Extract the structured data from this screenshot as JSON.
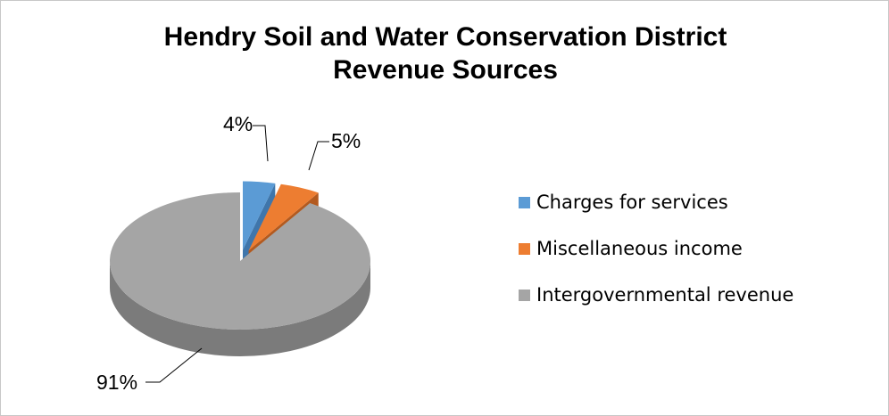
{
  "chart_data": {
    "type": "pie",
    "title_lines": [
      "Hendry Soil and Water Conservation District",
      "Revenue Sources"
    ],
    "slices": [
      {
        "name": "Charges for services",
        "value": 4,
        "label": "4%",
        "color": "#5b9bd5",
        "side": "#3f76ab"
      },
      {
        "name": "Miscellaneous income",
        "value": 5,
        "label": "5%",
        "color": "#ed7d31",
        "side": "#b35a1f"
      },
      {
        "name": "Intergovernmental revenue",
        "value": 91,
        "label": "91%",
        "color": "#a5a5a5",
        "side": "#7b7b7b"
      }
    ],
    "exploded": [
      "Charges for services",
      "Miscellaneous income"
    ],
    "style": "3d",
    "legend_position": "right"
  }
}
